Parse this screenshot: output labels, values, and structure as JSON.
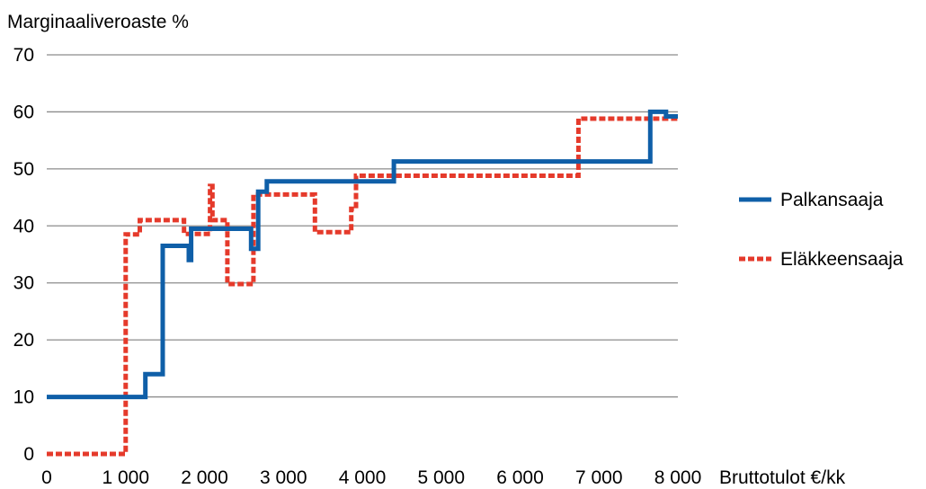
{
  "chart_data": {
    "type": "line",
    "ylabel": "Marginaaliveroaste %",
    "xlabel": "Bruttotulot €/kk",
    "xlim": [
      0,
      8000
    ],
    "ylim": [
      0,
      70
    ],
    "x_ticks": [
      0,
      1000,
      2000,
      3000,
      4000,
      5000,
      6000,
      7000,
      8000
    ],
    "x_tick_labels": [
      "0",
      "1 000",
      "2 000",
      "3 000",
      "4 000",
      "5 000",
      "6 000",
      "7 000",
      "8 000"
    ],
    "y_ticks": [
      0,
      10,
      20,
      30,
      40,
      50,
      60,
      70
    ],
    "y_tick_labels": [
      "0",
      "10",
      "20",
      "30",
      "40",
      "50",
      "60",
      "70"
    ],
    "grid": "horizontal",
    "legend_position": "right",
    "series": [
      {
        "name": "Palkansaaja",
        "color": "#0f5fa8",
        "style": "solid",
        "points": [
          [
            0,
            10
          ],
          [
            1250,
            10
          ],
          [
            1250,
            14
          ],
          [
            1470,
            14
          ],
          [
            1470,
            36.5
          ],
          [
            1800,
            36.5
          ],
          [
            1800,
            34
          ],
          [
            1830,
            34
          ],
          [
            1830,
            39.5
          ],
          [
            2590,
            39.5
          ],
          [
            2590,
            36
          ],
          [
            2680,
            36
          ],
          [
            2680,
            46
          ],
          [
            2790,
            46
          ],
          [
            2790,
            47.8
          ],
          [
            4400,
            47.8
          ],
          [
            4400,
            51.3
          ],
          [
            7650,
            51.3
          ],
          [
            7650,
            60
          ],
          [
            7850,
            60
          ],
          [
            7850,
            59.2
          ],
          [
            8000,
            59.2
          ]
        ]
      },
      {
        "name": "Eläkkeensaaja",
        "color": "#e53a2b",
        "style": "dashed",
        "points": [
          [
            0,
            0
          ],
          [
            1000,
            0
          ],
          [
            1000,
            38.5
          ],
          [
            1180,
            38.5
          ],
          [
            1180,
            41
          ],
          [
            1740,
            41
          ],
          [
            1740,
            38.6
          ],
          [
            2070,
            38.6
          ],
          [
            2070,
            47
          ],
          [
            2100,
            47
          ],
          [
            2100,
            41
          ],
          [
            2290,
            41
          ],
          [
            2290,
            29.8
          ],
          [
            2620,
            29.8
          ],
          [
            2620,
            45.5
          ],
          [
            3400,
            45.5
          ],
          [
            3400,
            38.9
          ],
          [
            3860,
            38.9
          ],
          [
            3860,
            43
          ],
          [
            3920,
            43
          ],
          [
            3920,
            48.8
          ],
          [
            6740,
            48.8
          ],
          [
            6740,
            58.8
          ],
          [
            8000,
            58.8
          ]
        ]
      }
    ]
  }
}
